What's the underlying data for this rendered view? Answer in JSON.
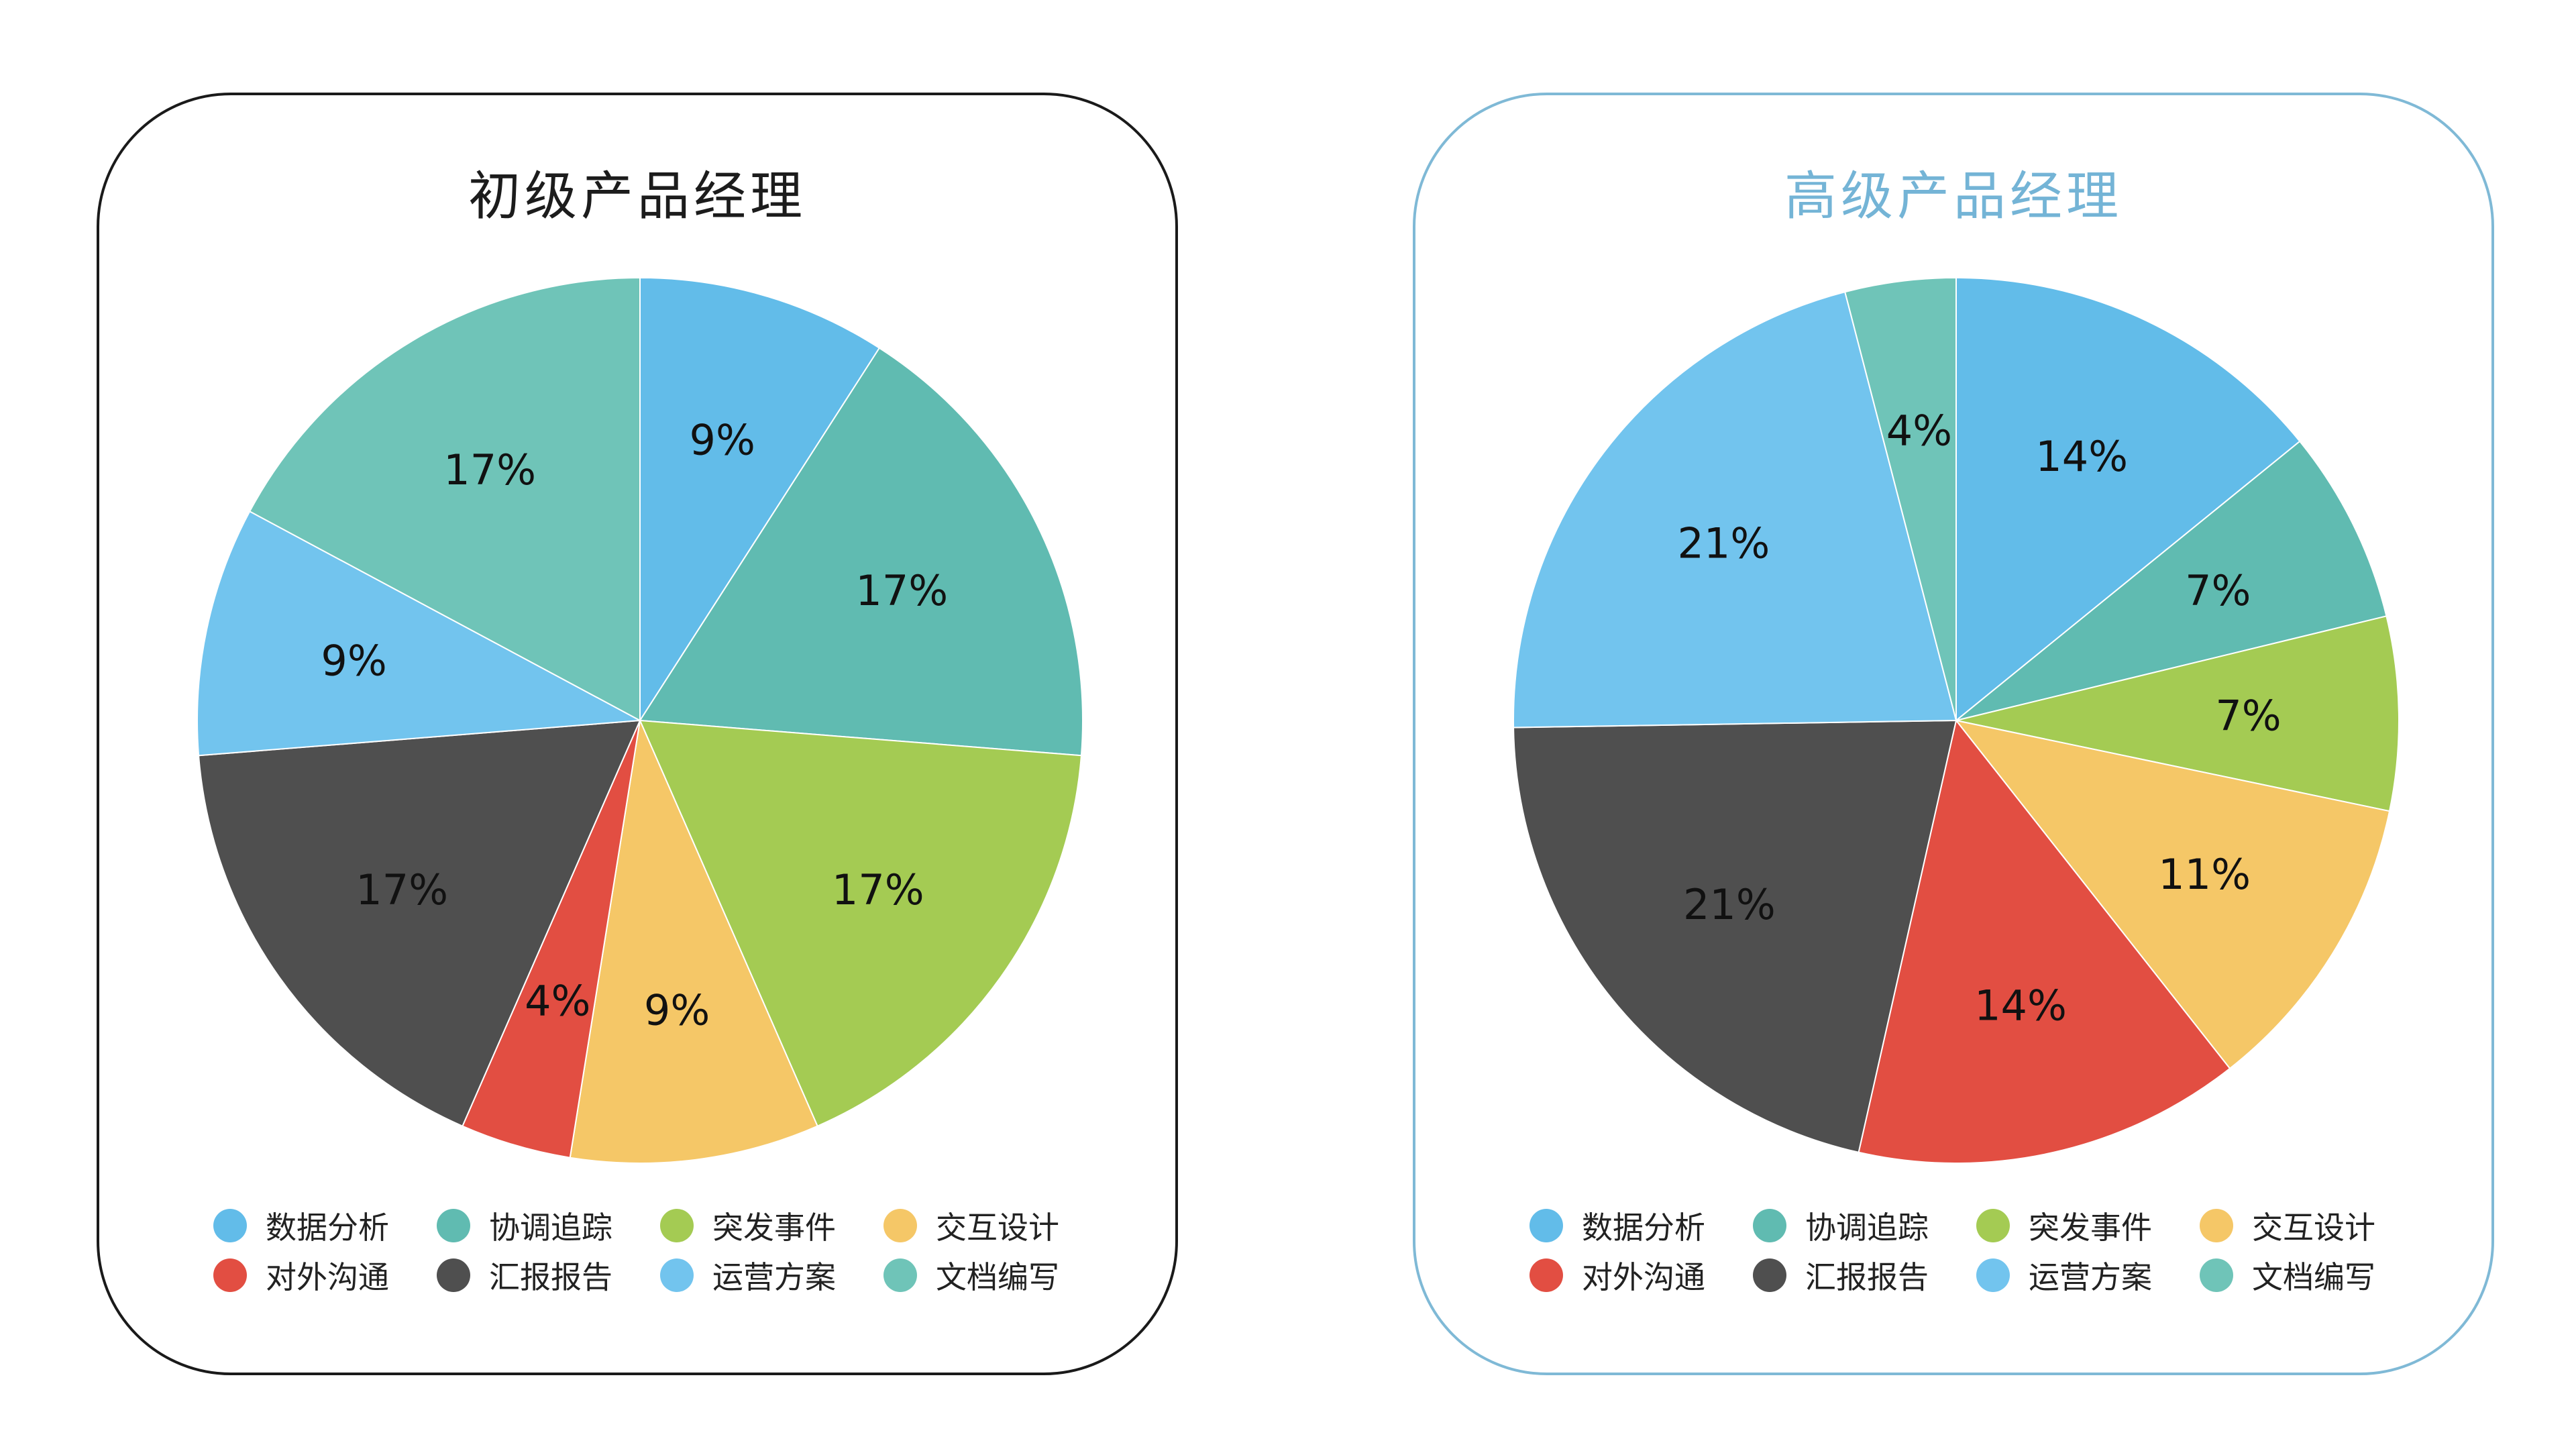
{
  "legend_items": [
    {
      "label": "数据分析",
      "color": "#62bce9"
    },
    {
      "label": "协调追踪",
      "color": "#60bbb1"
    },
    {
      "label": "突发事件",
      "color": "#a4cb53"
    },
    {
      "label": "交互设计",
      "color": "#f5c767"
    },
    {
      "label": "对外沟通",
      "color": "#e24e42"
    },
    {
      "label": "汇报报告",
      "color": "#4f4f4f"
    },
    {
      "label": "运营方案",
      "color": "#72c4ee"
    },
    {
      "label": "文档编写",
      "color": "#6fc4b8"
    }
  ],
  "chart_data": [
    {
      "type": "pie",
      "title": "初级产品经理",
      "title_color": "#1c1c1c",
      "border_color": "#1a1a1a",
      "categories": [
        "数据分析",
        "协调追踪",
        "突发事件",
        "交互设计",
        "对外沟通",
        "汇报报告",
        "运营方案",
        "文档编写"
      ],
      "values": [
        9,
        17,
        17,
        9,
        4,
        17,
        9,
        17
      ],
      "labels": [
        "9%",
        "17%",
        "17%",
        "9%",
        "4%",
        "17%",
        "9%",
        "17%"
      ],
      "start_angle_deg": 0,
      "direction": "clockwise",
      "legend_position": "bottom"
    },
    {
      "type": "pie",
      "title": "高级产品经理",
      "title_color": "#74b4d6",
      "border_color": "#7fb9d6",
      "categories": [
        "数据分析",
        "协调追踪",
        "突发事件",
        "交互设计",
        "对外沟通",
        "汇报报告",
        "运营方案",
        "文档编写"
      ],
      "values": [
        14,
        7,
        7,
        11,
        14,
        21,
        21,
        4
      ],
      "labels": [
        "14%",
        "7%",
        "7%",
        "11%",
        "14%",
        "21%",
        "21%",
        "4%"
      ],
      "start_angle_deg": 0,
      "direction": "clockwise",
      "legend_position": "bottom"
    }
  ]
}
